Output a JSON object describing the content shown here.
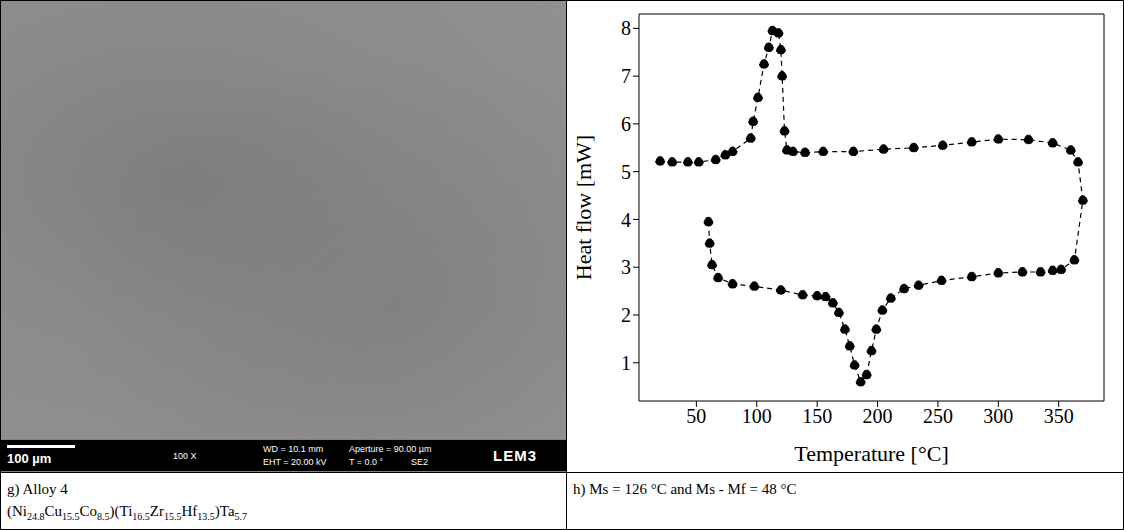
{
  "sem_image": {
    "scale_bar": "100 µm",
    "magnification": "100 X",
    "wd": "WD = 10.1 mm",
    "aperture": "Aperture = 90.00 µm",
    "eht": "EHT = 20.00 kV",
    "tilt": "T = 0.0 °",
    "detector": "SE2",
    "logo": "LEM3"
  },
  "chart_data": {
    "type": "line",
    "x_label": "Temperature [°C]",
    "y_label": "Heat flow [mW]",
    "x": [
      60,
      61,
      63,
      68,
      80,
      98,
      120,
      138,
      150,
      157,
      163,
      168,
      173,
      177,
      181,
      186,
      191,
      195,
      199,
      204,
      211,
      222,
      234,
      253,
      278,
      300,
      320,
      335,
      345,
      352,
      363,
      370,
      366,
      360,
      345,
      325,
      300,
      278,
      254,
      230,
      205,
      180,
      155,
      140,
      130,
      125,
      123,
      121,
      120,
      118,
      113,
      110,
      106,
      101,
      97,
      95,
      80,
      74,
      66,
      52,
      43,
      30,
      20
    ],
    "values": [
      3.95,
      3.5,
      3.05,
      2.78,
      2.65,
      2.6,
      2.52,
      2.42,
      2.4,
      2.38,
      2.25,
      2.05,
      1.7,
      1.35,
      0.95,
      0.6,
      0.75,
      1.25,
      1.7,
      2.1,
      2.35,
      2.55,
      2.62,
      2.72,
      2.8,
      2.88,
      2.9,
      2.9,
      2.93,
      2.95,
      3.15,
      4.4,
      5.2,
      5.45,
      5.6,
      5.67,
      5.68,
      5.62,
      5.55,
      5.5,
      5.47,
      5.42,
      5.42,
      5.4,
      5.42,
      5.45,
      5.85,
      7.0,
      7.55,
      7.9,
      7.95,
      7.6,
      7.25,
      6.55,
      6.05,
      5.7,
      5.42,
      5.35,
      5.25,
      5.2,
      5.2,
      5.2,
      5.22
    ],
    "xlim": [
      2.5,
      387.5
    ],
    "ylim": [
      0.2,
      8.3
    ],
    "xticks": [
      50,
      100,
      150,
      200,
      250,
      300,
      350
    ],
    "yticks": [
      1,
      2,
      3,
      4,
      5,
      6,
      7,
      8
    ],
    "color": "#000000",
    "marker": "circle",
    "line_style": "dashed",
    "grid": false
  },
  "captions": {
    "left": {
      "label": "g) Alloy 4",
      "formula": [
        [
          "(Ni",
          "24.8"
        ],
        [
          "Cu",
          "15.5"
        ],
        [
          "Co",
          "8.5"
        ],
        [
          ")(Ti",
          "16.5"
        ],
        [
          "Zr",
          "15.5"
        ],
        [
          "Hf",
          "13.5"
        ],
        [
          ")Ta",
          "5.7"
        ]
      ]
    },
    "right": "h) Ms = 126 °C and Ms - Mf = 48 °C"
  }
}
